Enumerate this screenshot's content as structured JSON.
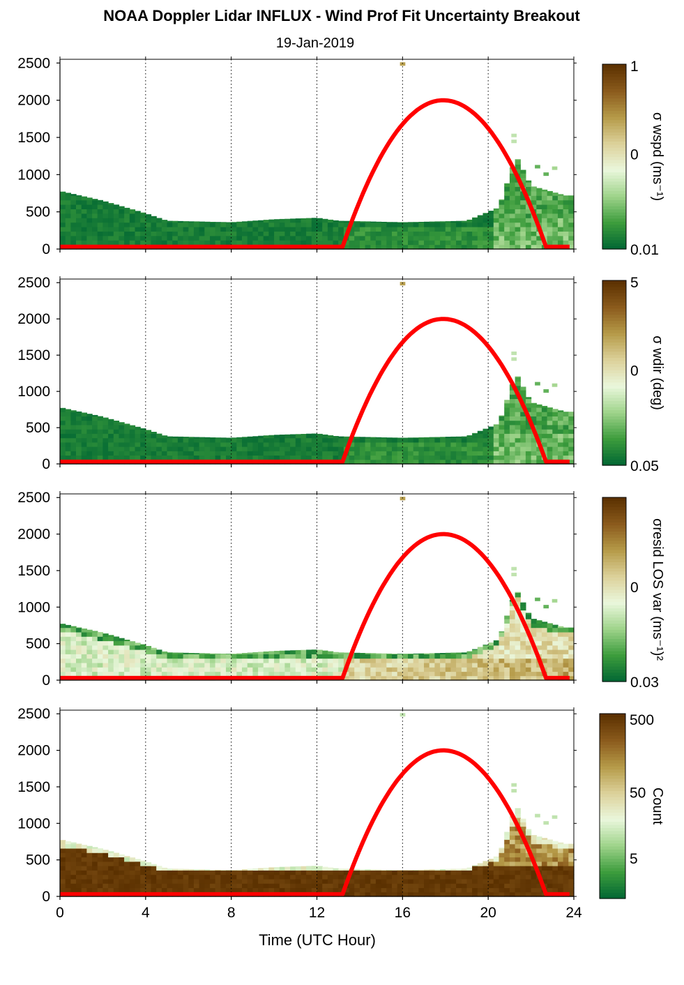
{
  "title": "NOAA Doppler Lidar INFLUX - Wind Prof Fit Uncertainty Breakout",
  "date": "19-Jan-2019",
  "xlabel": "Time (UTC Hour)",
  "x_ticks": [
    "0",
    "4",
    "8",
    "12",
    "16",
    "20",
    "24"
  ],
  "y_ticks": [
    "0",
    "500",
    "1000",
    "1500",
    "2000",
    "2500"
  ],
  "colors": {
    "sun_curve": "#ff0000",
    "grid": "#000000",
    "colormap": [
      "#006633",
      "#3c9c3c",
      "#9ed38a",
      "#eaf7dc",
      "#dcd19a",
      "#b59a48",
      "#8a5a1c",
      "#5a3000"
    ]
  },
  "chart_data": [
    {
      "type": "heatmap",
      "panel": 1,
      "colorbar_label": "σ wspd (ms⁻¹)",
      "colorbar_ticks": [
        "1",
        "0",
        "0.01"
      ],
      "scale": "log",
      "x_range": [
        0,
        24
      ],
      "y_range": [
        0,
        2550
      ],
      "y_unit": "m",
      "sun_elevation_curve": {
        "rise_hour": 13.2,
        "peak_hour": 17.9,
        "peak_y": 2000,
        "set_hour": 22.7
      },
      "data_top_height_m": [
        [
          0,
          780
        ],
        [
          2,
          650
        ],
        [
          4,
          480
        ],
        [
          5,
          380
        ],
        [
          8,
          360
        ],
        [
          10,
          400
        ],
        [
          12,
          420
        ],
        [
          13,
          380
        ],
        [
          16,
          360
        ],
        [
          19,
          380
        ],
        [
          20.5,
          560
        ],
        [
          21.3,
          1250
        ],
        [
          22,
          850
        ],
        [
          23.6,
          720
        ]
      ]
    },
    {
      "type": "heatmap",
      "panel": 2,
      "colorbar_label": "σ wdir (deg)",
      "colorbar_ticks": [
        "5",
        "0",
        "0.05"
      ],
      "scale": "log",
      "x_range": [
        0,
        24
      ],
      "y_range": [
        0,
        2550
      ],
      "y_unit": "m",
      "sun_elevation_curve": {
        "rise_hour": 13.2,
        "peak_hour": 17.9,
        "peak_y": 2000,
        "set_hour": 22.7
      }
    },
    {
      "type": "heatmap",
      "panel": 3,
      "colorbar_label": "σresid LOS var (ms⁻¹)²",
      "colorbar_ticks": [
        "0",
        "0.03"
      ],
      "scale": "log",
      "x_range": [
        0,
        24
      ],
      "y_range": [
        0,
        2550
      ],
      "y_unit": "m",
      "sun_elevation_curve": {
        "rise_hour": 13.2,
        "peak_hour": 17.9,
        "peak_y": 2000,
        "set_hour": 22.7
      }
    },
    {
      "type": "heatmap",
      "panel": 4,
      "colorbar_label": "Count",
      "colorbar_ticks": [
        "500",
        "50",
        "5"
      ],
      "scale": "log",
      "x_range": [
        0,
        24
      ],
      "y_range": [
        0,
        2550
      ],
      "y_unit": "m",
      "sun_elevation_curve": {
        "rise_hour": 13.2,
        "peak_hour": 17.9,
        "peak_y": 2000,
        "set_hour": 22.7
      }
    }
  ]
}
